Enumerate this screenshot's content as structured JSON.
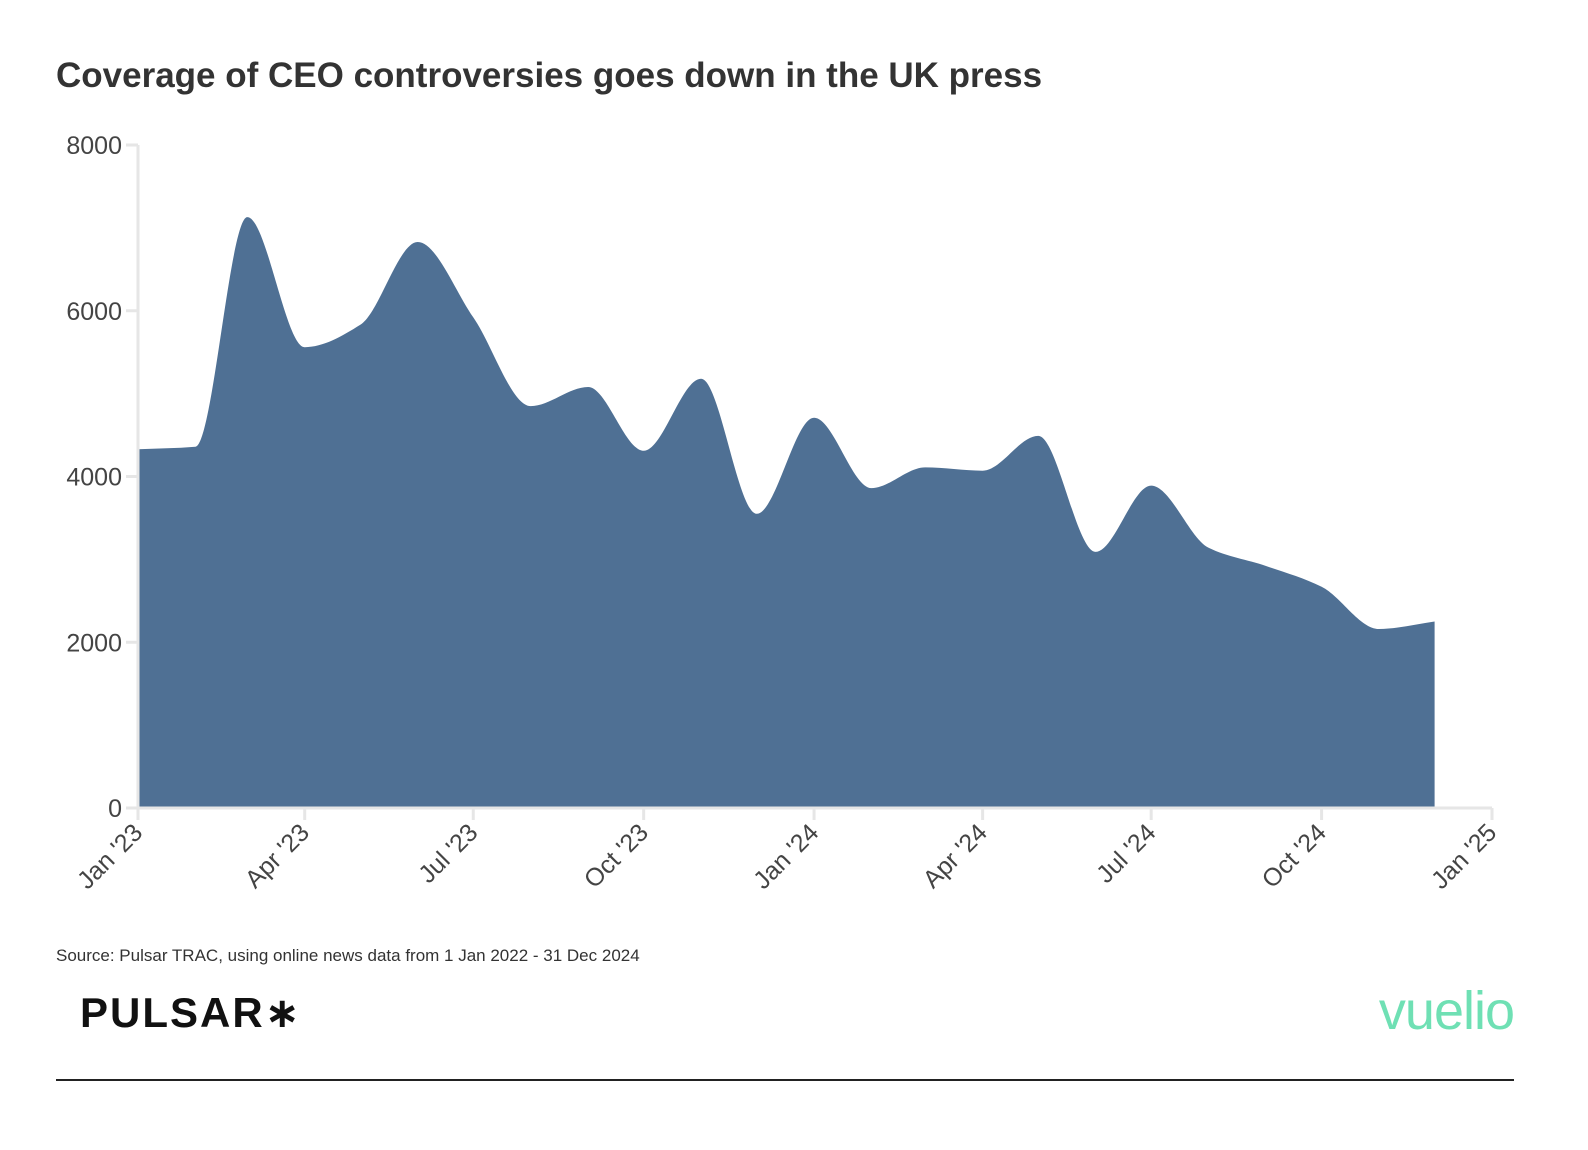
{
  "colors": {
    "area": "#4f7094",
    "axis": "#e6e6e6",
    "text": "#333333",
    "vuelio": "#6fe0b4"
  },
  "footer": {
    "source": "Source: Pulsar TRAC, using online news data from 1 Jan 2022 - 31 Dec 2024",
    "logo_left": "PULSAR∗",
    "logo_right": "vuelio"
  },
  "chart_data": {
    "type": "area",
    "title": "Coverage of CEO controversies goes down in the UK press",
    "xlabel": "",
    "ylabel": "",
    "x": [
      "2023-01-01",
      "2023-02-01",
      "2023-03-01",
      "2023-04-01",
      "2023-05-01",
      "2023-06-01",
      "2023-07-01",
      "2023-08-01",
      "2023-09-01",
      "2023-10-01",
      "2023-11-01",
      "2023-12-01",
      "2024-01-01",
      "2024-02-01",
      "2024-03-01",
      "2024-04-01",
      "2024-05-01",
      "2024-06-01",
      "2024-07-01",
      "2024-08-01",
      "2024-09-01",
      "2024-10-01",
      "2024-11-01",
      "2024-12-01"
    ],
    "values": [
      4330,
      4360,
      7130,
      5560,
      5830,
      6830,
      5920,
      4850,
      5080,
      4310,
      5180,
      3550,
      4710,
      3860,
      4110,
      4070,
      4490,
      3090,
      3890,
      3140,
      2920,
      2670,
      2160,
      2250
    ],
    "ylim": [
      0,
      8000
    ],
    "yticks": [
      "0",
      "2000",
      "4000",
      "6000",
      "8000"
    ],
    "xlim": [
      "2023-01-01",
      "2025-01-01"
    ],
    "xticks": [
      {
        "date": "2023-01-01",
        "label": "Jan '23"
      },
      {
        "date": "2023-04-01",
        "label": "Apr '23"
      },
      {
        "date": "2023-07-01",
        "label": "Jul '23"
      },
      {
        "date": "2023-10-01",
        "label": "Oct '23"
      },
      {
        "date": "2024-01-01",
        "label": "Jan '24"
      },
      {
        "date": "2024-04-01",
        "label": "Apr '24"
      },
      {
        "date": "2024-07-01",
        "label": "Jul '24"
      },
      {
        "date": "2024-10-01",
        "label": "Oct '24"
      },
      {
        "date": "2025-01-01",
        "label": "Jan '25"
      }
    ],
    "grid": false,
    "legend": "none"
  }
}
